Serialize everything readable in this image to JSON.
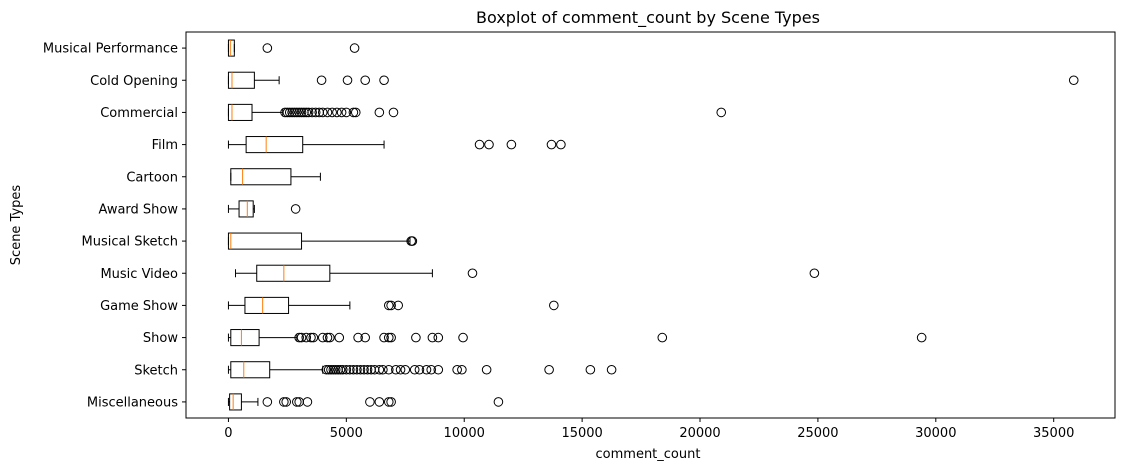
{
  "chart_data": {
    "type": "box",
    "orientation": "horizontal",
    "title": "Boxplot of comment_count by Scene Types",
    "xlabel": "comment_count",
    "ylabel": "Scene Types",
    "xlim": [
      -1800,
      37600
    ],
    "xticks": [
      0,
      5000,
      10000,
      15000,
      20000,
      25000,
      30000,
      35000
    ],
    "xtick_labels": [
      "0",
      "5000",
      "10000",
      "15000",
      "20000",
      "25000",
      "30000",
      "35000"
    ],
    "grid": false,
    "legend": "none",
    "colors": {
      "box": "#000000",
      "median": "#ff7f0e",
      "flier": "#000000"
    },
    "categories": [
      "Musical Performance",
      "Cold Opening",
      "Commercial",
      "Film",
      "Cartoon",
      "Award Show",
      "Musical Sketch",
      "Music Video",
      "Game Show",
      "Show",
      "Sketch",
      "Miscellaneous"
    ],
    "boxes": [
      {
        "name": "Musical Performance",
        "whislo": 0,
        "q1": 0,
        "med": 80,
        "q3": 250,
        "whishi": 250,
        "fliers": [
          1650,
          5350
        ]
      },
      {
        "name": "Cold Opening",
        "whislo": 0,
        "q1": 0,
        "med": 150,
        "q3": 1100,
        "whishi": 2150,
        "fliers": [
          3950,
          5050,
          5800,
          6600,
          35850
        ]
      },
      {
        "name": "Commercial",
        "whislo": 0,
        "q1": 0,
        "med": 150,
        "q3": 1000,
        "whishi": 2300,
        "fliers": [
          2400,
          2500,
          2600,
          2700,
          2800,
          2900,
          3000,
          3100,
          3200,
          3300,
          3400,
          3550,
          3700,
          3850,
          4000,
          4200,
          4400,
          4600,
          4800,
          5000,
          5300,
          5400,
          6400,
          7000,
          20900
        ]
      },
      {
        "name": "Film",
        "whislo": 0,
        "q1": 750,
        "med": 1600,
        "q3": 3150,
        "whishi": 6600,
        "fliers": [
          10650,
          11050,
          12000,
          13700,
          14100
        ]
      },
      {
        "name": "Cartoon",
        "whislo": 100,
        "q1": 100,
        "med": 600,
        "q3": 2650,
        "whishi": 3900,
        "fliers": []
      },
      {
        "name": "Award Show",
        "whislo": 0,
        "q1": 450,
        "med": 800,
        "q3": 1050,
        "whishi": 1100,
        "fliers": [
          2850
        ]
      },
      {
        "name": "Musical Sketch",
        "whislo": 0,
        "q1": 0,
        "med": 100,
        "q3": 3100,
        "whishi": 7700,
        "fliers": [
          7750,
          7800
        ]
      },
      {
        "name": "Music Video",
        "whislo": 300,
        "q1": 1200,
        "med": 2350,
        "q3": 4300,
        "whishi": 8650,
        "fliers": [
          10350,
          24850
        ]
      },
      {
        "name": "Game Show",
        "whislo": 0,
        "q1": 700,
        "med": 1450,
        "q3": 2550,
        "whishi": 5150,
        "fliers": [
          6800,
          6900,
          7200,
          13800
        ]
      },
      {
        "name": "Show",
        "whislo": 0,
        "q1": 100,
        "med": 550,
        "q3": 1300,
        "whishi": 2900,
        "fliers": [
          3000,
          3100,
          3300,
          3500,
          3600,
          4000,
          4200,
          4300,
          4700,
          5500,
          5800,
          6600,
          6800,
          6900,
          7950,
          8650,
          8900,
          9950,
          18400,
          29400
        ]
      },
      {
        "name": "Sketch",
        "whislo": 0,
        "q1": 100,
        "med": 650,
        "q3": 1750,
        "whishi": 4000,
        "fliers": [
          4150,
          4250,
          4350,
          4450,
          4550,
          4650,
          4750,
          4850,
          5000,
          5150,
          5300,
          5450,
          5600,
          5750,
          5900,
          6050,
          6200,
          6400,
          6550,
          6800,
          7100,
          7300,
          7500,
          7900,
          8100,
          8400,
          8600,
          8900,
          9700,
          9900,
          10950,
          13600,
          15350,
          16250
        ]
      },
      {
        "name": "Miscellaneous",
        "whislo": 0,
        "q1": 50,
        "med": 200,
        "q3": 550,
        "whishi": 1250,
        "fliers": [
          1650,
          2350,
          2450,
          2900,
          3000,
          3350,
          6000,
          6400,
          6800,
          6900,
          11450
        ]
      }
    ]
  }
}
